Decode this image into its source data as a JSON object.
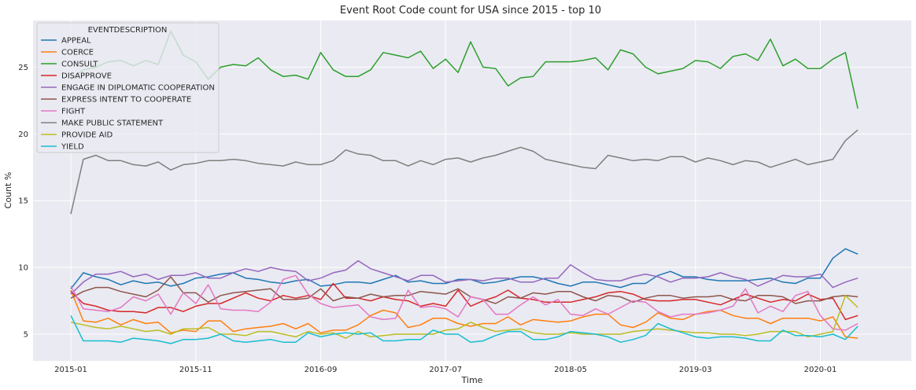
{
  "chart_data": {
    "type": "line",
    "title": "Event Root Code count for USA since 2015 - top 10",
    "xlabel": "Time",
    "ylabel": "Count %",
    "ylim": [
      3.0,
      28.5
    ],
    "x_start": "2015-01",
    "x_end": "2020-05",
    "x_ticks": [
      "2015-01",
      "2015-11",
      "2016-09",
      "2017-07",
      "2018-05",
      "2019-03",
      "2020-01"
    ],
    "y_ticks": [
      5,
      10,
      15,
      20,
      25
    ],
    "grid": true,
    "legend_title": "EVENTDESCRIPTION",
    "legend_position": "upper-left",
    "series": [
      {
        "name": "APPEAL",
        "color": "#1f77b4",
        "values": [
          8.4,
          9.6,
          9.3,
          9.1,
          8.7,
          9.0,
          8.8,
          8.9,
          8.6,
          8.8,
          9.2,
          9.3,
          9.5,
          9.6,
          9.2,
          9.1,
          8.9,
          8.8,
          9.0,
          9.1,
          8.6,
          8.7,
          8.9,
          8.9,
          8.8,
          9.1,
          9.4,
          8.9,
          9.0,
          8.8,
          8.8,
          9.1,
          9.1,
          8.8,
          8.9,
          9.1,
          9.3,
          9.3,
          9.1,
          8.8,
          8.6,
          8.9,
          8.9,
          8.7,
          8.5,
          8.8,
          8.8,
          9.4,
          9.7,
          9.3,
          9.3,
          9.1,
          9.0,
          9.0,
          9.0,
          9.1,
          9.2,
          8.9,
          8.8,
          9.2,
          9.2,
          10.7,
          11.4,
          11.0
        ]
      },
      {
        "name": "COERCE",
        "color": "#ff7f0e",
        "values": [
          8.3,
          6.0,
          5.9,
          6.2,
          5.7,
          6.1,
          5.8,
          5.9,
          5.1,
          5.3,
          5.2,
          6.0,
          6.0,
          5.2,
          5.4,
          5.5,
          5.6,
          5.8,
          5.4,
          5.8,
          5.1,
          5.3,
          5.3,
          5.7,
          6.4,
          6.8,
          6.6,
          5.5,
          5.7,
          6.2,
          6.2,
          5.8,
          5.6,
          5.8,
          5.8,
          6.3,
          5.7,
          6.1,
          6.0,
          5.9,
          6.0,
          6.3,
          6.5,
          6.5,
          5.7,
          5.5,
          5.9,
          6.6,
          6.2,
          6.1,
          6.5,
          6.7,
          6.8,
          6.4,
          6.2,
          6.2,
          5.8,
          6.2,
          6.2,
          6.2,
          6.0,
          6.3,
          4.8,
          4.7
        ]
      },
      {
        "name": "CONSULT",
        "color": "#2ca02c",
        "values": [
          24.1,
          24.8,
          25.0,
          25.4,
          25.5,
          25.1,
          25.5,
          25.2,
          27.7,
          25.9,
          25.4,
          24.1,
          25.0,
          25.2,
          25.1,
          25.7,
          24.8,
          24.3,
          24.4,
          24.1,
          26.1,
          24.8,
          24.3,
          24.3,
          24.8,
          26.1,
          25.9,
          25.7,
          26.2,
          24.9,
          25.6,
          24.6,
          26.9,
          25.0,
          24.9,
          23.6,
          24.2,
          24.3,
          25.4,
          25.4,
          25.4,
          25.5,
          25.7,
          24.8,
          26.3,
          26.0,
          25.0,
          24.5,
          24.7,
          24.9,
          25.5,
          25.4,
          24.9,
          25.8,
          26.0,
          25.5,
          27.1,
          25.1,
          25.6,
          24.9,
          24.9,
          25.6,
          26.1,
          21.9
        ]
      },
      {
        "name": "DISAPPROVE",
        "color": "#d62728",
        "values": [
          8.2,
          7.3,
          7.1,
          6.8,
          6.7,
          6.7,
          6.6,
          7.0,
          7.0,
          6.7,
          7.1,
          7.3,
          7.3,
          7.7,
          8.1,
          7.7,
          7.5,
          7.9,
          7.7,
          7.9,
          7.6,
          8.8,
          7.7,
          7.7,
          7.5,
          7.8,
          7.6,
          7.5,
          7.1,
          7.3,
          7.1,
          8.3,
          7.1,
          7.5,
          7.8,
          8.3,
          7.7,
          7.6,
          7.4,
          7.4,
          7.4,
          7.6,
          7.8,
          8.1,
          8.2,
          8.0,
          7.6,
          7.5,
          7.5,
          7.6,
          7.6,
          7.4,
          7.2,
          7.6,
          8.0,
          7.7,
          7.4,
          7.6,
          7.5,
          8.0,
          7.6,
          7.7,
          6.1,
          6.4
        ]
      },
      {
        "name": "ENGAGE IN DIPLOMATIC COOPERATION",
        "color": "#9467bd",
        "values": [
          8.0,
          8.9,
          9.5,
          9.5,
          9.7,
          9.3,
          9.5,
          9.1,
          9.4,
          9.4,
          9.6,
          9.2,
          9.2,
          9.6,
          9.9,
          9.7,
          10.0,
          9.8,
          9.7,
          9.0,
          9.2,
          9.6,
          9.8,
          10.5,
          9.9,
          9.6,
          9.3,
          9.0,
          9.4,
          9.4,
          8.9,
          9.0,
          9.1,
          9.0,
          9.2,
          9.2,
          8.9,
          8.9,
          9.2,
          9.2,
          10.2,
          9.6,
          9.1,
          9.0,
          9.0,
          9.3,
          9.5,
          9.3,
          8.9,
          9.2,
          9.2,
          9.3,
          9.6,
          9.3,
          9.1,
          8.6,
          9.0,
          9.4,
          9.3,
          9.3,
          9.5,
          8.5,
          8.9,
          9.2
        ]
      },
      {
        "name": "EXPRESS INTENT TO COOPERATE",
        "color": "#8c564b",
        "values": [
          7.7,
          8.2,
          8.5,
          8.5,
          8.2,
          8.0,
          7.8,
          8.3,
          9.3,
          8.1,
          8.1,
          7.4,
          7.9,
          8.1,
          8.2,
          8.3,
          8.4,
          7.6,
          7.6,
          7.7,
          8.4,
          7.5,
          7.8,
          7.7,
          8.0,
          7.8,
          7.9,
          7.9,
          8.2,
          8.1,
          8.0,
          8.4,
          7.8,
          7.6,
          7.3,
          7.8,
          7.7,
          8.1,
          8.0,
          8.2,
          8.2,
          7.8,
          7.5,
          7.9,
          7.8,
          7.4,
          7.7,
          7.9,
          7.9,
          7.7,
          7.8,
          7.8,
          7.9,
          7.6,
          7.5,
          7.9,
          7.9,
          7.8,
          7.3,
          7.5,
          7.5,
          7.8,
          7.9,
          7.8
        ]
      },
      {
        "name": "FIGHT",
        "color": "#e377c2",
        "values": [
          8.6,
          6.9,
          6.8,
          6.7,
          7.0,
          7.8,
          7.5,
          8.0,
          6.5,
          8.1,
          7.3,
          8.7,
          6.9,
          6.8,
          6.8,
          6.7,
          7.4,
          9.1,
          9.4,
          8.0,
          7.3,
          7.0,
          7.1,
          7.2,
          6.3,
          6.1,
          6.2,
          8.3,
          7.0,
          7.1,
          6.9,
          6.3,
          7.8,
          7.6,
          6.5,
          6.5,
          7.2,
          7.8,
          7.2,
          7.6,
          6.5,
          6.4,
          6.9,
          6.5,
          7.0,
          7.5,
          7.4,
          6.7,
          6.3,
          6.5,
          6.5,
          6.6,
          6.8,
          7.1,
          8.4,
          6.6,
          7.1,
          6.7,
          7.9,
          8.2,
          6.4,
          5.4,
          5.3,
          5.8
        ]
      },
      {
        "name": "MAKE PUBLIC STATEMENT",
        "color": "#7f7f7f",
        "values": [
          14.0,
          18.1,
          18.4,
          18.0,
          18.0,
          17.7,
          17.6,
          17.9,
          17.3,
          17.7,
          17.8,
          18.0,
          18.0,
          18.1,
          18.0,
          17.8,
          17.7,
          17.6,
          17.9,
          17.7,
          17.7,
          18.0,
          18.8,
          18.5,
          18.4,
          18.0,
          18.0,
          17.6,
          18.0,
          17.7,
          18.1,
          18.2,
          17.9,
          18.2,
          18.4,
          18.7,
          19.0,
          18.7,
          18.1,
          17.9,
          17.7,
          17.5,
          17.4,
          18.4,
          18.2,
          18.0,
          18.1,
          18.0,
          18.3,
          18.3,
          17.9,
          18.2,
          18.0,
          17.7,
          18.0,
          17.9,
          17.5,
          17.8,
          18.1,
          17.7,
          17.9,
          18.1,
          19.5,
          20.3
        ]
      },
      {
        "name": "PROVIDE AID",
        "color": "#bcbd22",
        "values": [
          5.9,
          5.7,
          5.5,
          5.4,
          5.6,
          5.4,
          5.2,
          5.3,
          5.0,
          5.4,
          5.4,
          5.5,
          5.0,
          5.0,
          4.9,
          5.2,
          5.2,
          5.0,
          4.8,
          5.2,
          5.0,
          5.1,
          4.7,
          5.2,
          4.8,
          4.9,
          5.0,
          5.0,
          5.0,
          5.0,
          5.3,
          5.4,
          5.9,
          5.5,
          5.2,
          5.3,
          5.4,
          5.1,
          5.0,
          5.0,
          5.1,
          5.0,
          5.0,
          5.0,
          5.0,
          5.2,
          5.3,
          5.4,
          5.3,
          5.2,
          5.1,
          5.1,
          5.0,
          5.0,
          4.9,
          5.0,
          5.2,
          5.2,
          5.2,
          4.8,
          5.0,
          5.2,
          7.9,
          7.0
        ]
      },
      {
        "name": "YIELD",
        "color": "#17becf",
        "values": [
          6.4,
          4.5,
          4.5,
          4.5,
          4.4,
          4.7,
          4.6,
          4.5,
          4.3,
          4.6,
          4.6,
          4.7,
          5.0,
          4.5,
          4.4,
          4.5,
          4.6,
          4.4,
          4.4,
          5.1,
          4.8,
          5.0,
          5.1,
          5.0,
          5.1,
          4.5,
          4.5,
          4.6,
          4.6,
          5.3,
          5.0,
          5.0,
          4.4,
          4.5,
          4.9,
          5.2,
          5.2,
          4.6,
          4.6,
          4.8,
          5.2,
          5.1,
          5.0,
          4.8,
          4.4,
          4.6,
          4.9,
          5.8,
          5.4,
          5.1,
          4.8,
          4.7,
          4.8,
          4.8,
          4.7,
          4.5,
          4.5,
          5.3,
          4.9,
          4.9,
          4.8,
          5.0,
          4.6,
          5.6
        ]
      }
    ]
  }
}
